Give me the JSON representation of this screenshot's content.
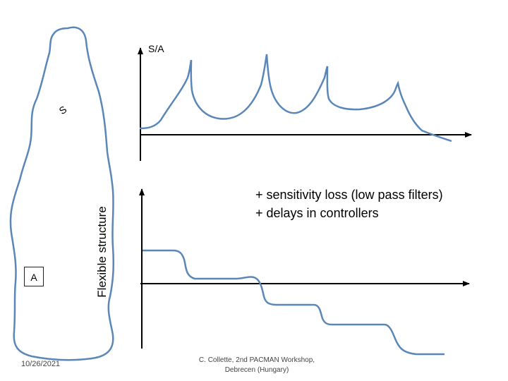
{
  "diagram": {
    "upper_axis_label": "S/A",
    "sensor_label": "S",
    "actuator_label": "A",
    "structure_label": "Flexible structure",
    "notes": [
      "+ sensitivity loss (low pass filters)",
      "+ delays in controllers"
    ],
    "colors": {
      "curve": "#5b87b8",
      "axis": "#000000"
    }
  },
  "footer": {
    "date": "10/26/2021",
    "credit_line1": "C. Collette, 2nd PACMAN Workshop,",
    "credit_line2": "Debrecen (Hungary)"
  }
}
